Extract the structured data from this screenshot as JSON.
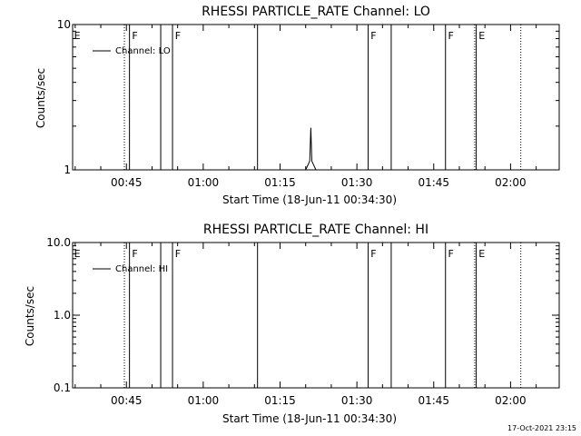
{
  "chart_data": [
    {
      "type": "line",
      "title": "RHESSI PARTICLE_RATE Channel: LO",
      "xlabel": "Start Time (18-Jun-11 00:34:30)",
      "ylabel": "Counts/sec",
      "yscale": "log",
      "ylim": [
        1,
        10
      ],
      "xlim": [
        "00:34:30",
        "02:09:30"
      ],
      "xticks": [
        "00:45",
        "01:00",
        "01:15",
        "01:30",
        "01:45",
        "02:00"
      ],
      "xtick_minutes": [
        45,
        60,
        75,
        90,
        105,
        120
      ],
      "yticks": [
        "1",
        "10"
      ],
      "ytick_values": [
        1,
        10
      ],
      "legend": "top-left",
      "series": [
        {
          "name": "Channel: LO",
          "x": [
            80.0,
            80.8,
            81.0,
            81.2,
            82.0
          ],
          "y": [
            1.0,
            1.15,
            1.95,
            1.15,
            1.0
          ]
        }
      ],
      "vlines_solid_minutes": [
        45.6,
        51.7,
        54.0,
        70.6,
        92.2,
        96.7,
        107.3,
        113.3
      ],
      "vlines_dotted_minutes": [
        44.6,
        113.0,
        122.0
      ],
      "flags": [
        {
          "label": "E",
          "minute": 34.6
        },
        {
          "label": "F",
          "minute": 45.9
        },
        {
          "label": "F",
          "minute": 54.3
        },
        {
          "label": "F",
          "minute": 92.5
        },
        {
          "label": "F",
          "minute": 107.6
        },
        {
          "label": "E",
          "minute": 113.6
        }
      ]
    },
    {
      "type": "line",
      "title": "RHESSI PARTICLE_RATE Channel: HI",
      "xlabel": "Start Time (18-Jun-11 00:34:30)",
      "ylabel": "Counts/sec",
      "yscale": "log",
      "ylim": [
        0.1,
        10
      ],
      "xlim": [
        "00:34:30",
        "02:09:30"
      ],
      "xticks": [
        "00:45",
        "01:00",
        "01:15",
        "01:30",
        "01:45",
        "02:00"
      ],
      "xtick_minutes": [
        45,
        60,
        75,
        90,
        105,
        120
      ],
      "yticks": [
        "0.1",
        "1.0",
        "10.0"
      ],
      "ytick_values": [
        0.1,
        1,
        10
      ],
      "legend": "top-left",
      "series": [
        {
          "name": "Channel: HI",
          "x": [],
          "y": []
        }
      ],
      "vlines_solid_minutes": [
        45.6,
        51.7,
        54.0,
        70.6,
        92.2,
        96.7,
        107.3,
        113.3
      ],
      "vlines_dotted_minutes": [
        44.6,
        113.0,
        122.0
      ],
      "flags": [
        {
          "label": "E",
          "minute": 34.6
        },
        {
          "label": "F",
          "minute": 45.9
        },
        {
          "label": "F",
          "minute": 54.3
        },
        {
          "label": "F",
          "minute": 92.5
        },
        {
          "label": "F",
          "minute": 107.6
        },
        {
          "label": "E",
          "minute": 113.6
        }
      ]
    }
  ],
  "footer": {
    "timestamp": "17-Oct-2021 23:15"
  }
}
